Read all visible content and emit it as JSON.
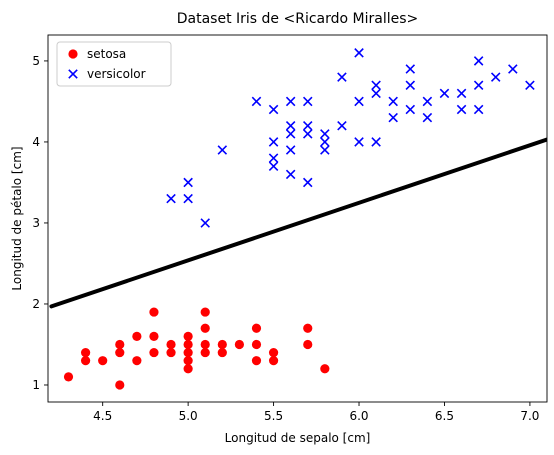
{
  "chart_data": {
    "type": "scatter",
    "title": "Dataset Iris de <Ricardo Miralles>",
    "xlabel": "Longitud de sepalo [cm]",
    "ylabel": "Longitud de pétalo [cm]",
    "xlim": [
      4.18,
      7.1
    ],
    "ylim": [
      0.79,
      5.32
    ],
    "xticks": [
      4.5,
      5.0,
      5.5,
      6.0,
      6.5,
      7.0
    ],
    "xtick_labels": [
      "4.5",
      "5.0",
      "5.5",
      "6.0",
      "6.5",
      "7.0"
    ],
    "yticks": [
      1,
      2,
      3,
      4,
      5
    ],
    "ytick_labels": [
      "1",
      "2",
      "3",
      "4",
      "5"
    ],
    "grid": false,
    "legend_position": "top-left",
    "series": [
      {
        "name": "setosa",
        "marker": "circle",
        "color": "#ff0000",
        "points": [
          [
            4.3,
            1.1
          ],
          [
            4.4,
            1.3
          ],
          [
            4.4,
            1.4
          ],
          [
            4.5,
            1.3
          ],
          [
            4.6,
            1.0
          ],
          [
            4.6,
            1.4
          ],
          [
            4.6,
            1.5
          ],
          [
            4.7,
            1.3
          ],
          [
            4.7,
            1.6
          ],
          [
            4.8,
            1.4
          ],
          [
            4.8,
            1.6
          ],
          [
            4.8,
            1.9
          ],
          [
            4.9,
            1.4
          ],
          [
            4.9,
            1.5
          ],
          [
            5.0,
            1.2
          ],
          [
            5.0,
            1.3
          ],
          [
            5.0,
            1.4
          ],
          [
            5.0,
            1.5
          ],
          [
            5.0,
            1.6
          ],
          [
            5.1,
            1.4
          ],
          [
            5.1,
            1.5
          ],
          [
            5.1,
            1.7
          ],
          [
            5.1,
            1.9
          ],
          [
            5.2,
            1.4
          ],
          [
            5.2,
            1.5
          ],
          [
            5.3,
            1.5
          ],
          [
            5.4,
            1.3
          ],
          [
            5.4,
            1.5
          ],
          [
            5.4,
            1.7
          ],
          [
            5.5,
            1.3
          ],
          [
            5.5,
            1.4
          ],
          [
            5.7,
            1.5
          ],
          [
            5.7,
            1.7
          ],
          [
            5.8,
            1.2
          ]
        ]
      },
      {
        "name": "versicolor",
        "marker": "x",
        "color": "#0000ff",
        "points": [
          [
            4.9,
            3.3
          ],
          [
            5.0,
            3.3
          ],
          [
            5.0,
            3.5
          ],
          [
            5.1,
            3.0
          ],
          [
            5.2,
            3.9
          ],
          [
            5.4,
            4.5
          ],
          [
            5.5,
            3.7
          ],
          [
            5.5,
            3.8
          ],
          [
            5.5,
            4.0
          ],
          [
            5.5,
            4.4
          ],
          [
            5.6,
            3.6
          ],
          [
            5.6,
            3.9
          ],
          [
            5.6,
            4.1
          ],
          [
            5.6,
            4.2
          ],
          [
            5.6,
            4.5
          ],
          [
            5.7,
            3.5
          ],
          [
            5.7,
            4.1
          ],
          [
            5.7,
            4.2
          ],
          [
            5.7,
            4.5
          ],
          [
            5.8,
            3.9
          ],
          [
            5.8,
            4.0
          ],
          [
            5.8,
            4.1
          ],
          [
            5.9,
            4.2
          ],
          [
            5.9,
            4.8
          ],
          [
            6.0,
            4.0
          ],
          [
            6.0,
            4.5
          ],
          [
            6.0,
            5.1
          ],
          [
            6.1,
            4.0
          ],
          [
            6.1,
            4.6
          ],
          [
            6.1,
            4.7
          ],
          [
            6.2,
            4.3
          ],
          [
            6.2,
            4.5
          ],
          [
            6.3,
            4.4
          ],
          [
            6.3,
            4.7
          ],
          [
            6.3,
            4.9
          ],
          [
            6.4,
            4.3
          ],
          [
            6.4,
            4.5
          ],
          [
            6.5,
            4.6
          ],
          [
            6.6,
            4.4
          ],
          [
            6.6,
            4.6
          ],
          [
            6.7,
            4.4
          ],
          [
            6.7,
            4.7
          ],
          [
            6.7,
            5.0
          ],
          [
            6.8,
            4.8
          ],
          [
            6.9,
            4.9
          ],
          [
            7.0,
            4.7
          ]
        ]
      },
      {
        "type": "line",
        "color": "#000000",
        "points": [
          [
            4.2,
            1.97
          ],
          [
            7.1,
            4.03
          ]
        ]
      }
    ]
  }
}
